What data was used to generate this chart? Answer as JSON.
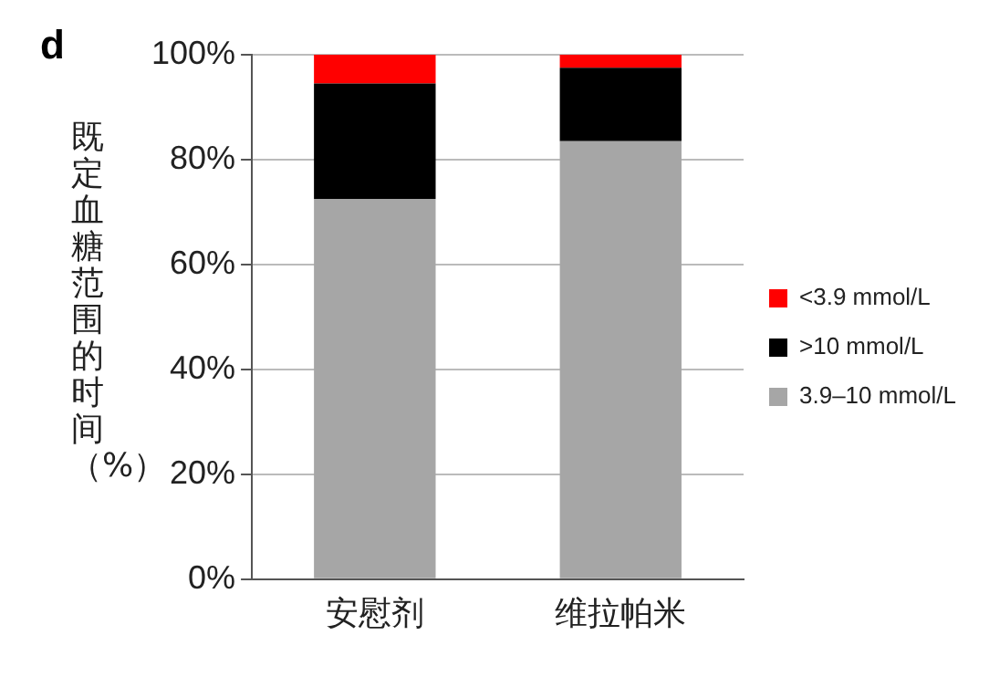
{
  "chart_data": {
    "type": "bar",
    "title": "d",
    "ylabel": "既定血糖范围的时间（%）",
    "categories": [
      "安慰剂",
      "维拉帕米"
    ],
    "stacked": true,
    "series": [
      {
        "name": "3.9–10 mmol/L",
        "color": "#a6a6a6",
        "values": [
          72.5,
          83.5
        ]
      },
      {
        "name": ">10 mmol/L",
        "color": "#000000",
        "values": [
          22,
          14
        ]
      },
      {
        "name": "<3.9 mmol/L",
        "color": "#ff0000",
        "values": [
          5.5,
          2.5
        ]
      }
    ],
    "ylim": [
      0,
      100
    ],
    "yticks": [
      {
        "value": 0,
        "label": "0%"
      },
      {
        "value": 20,
        "label": "20%"
      },
      {
        "value": 40,
        "label": "40%"
      },
      {
        "value": 60,
        "label": "60%"
      },
      {
        "value": 80,
        "label": "80%"
      },
      {
        "value": 100,
        "label": "100%"
      }
    ],
    "grid": "y",
    "legend": "right"
  }
}
